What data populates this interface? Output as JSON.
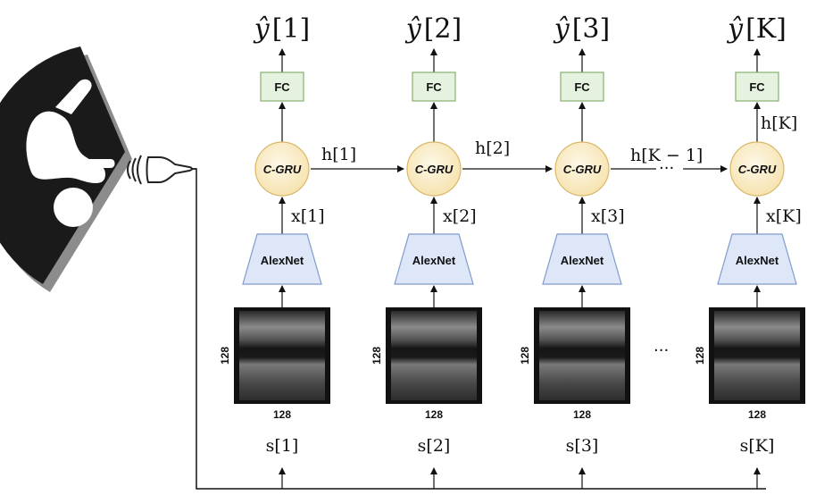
{
  "outputs": [
    {
      "hat": "ŷ",
      "index": "[1]"
    },
    {
      "hat": "ŷ",
      "index": "[2]"
    },
    {
      "hat": "ŷ",
      "index": "[3]"
    },
    {
      "hat": "ŷ",
      "index": "[K]"
    }
  ],
  "fc_label": "FC",
  "gru_label": "C-GRU",
  "alexnet_label": "AlexNet",
  "hidden_labels": [
    "h[1]",
    "h[2]",
    "h[K − 1]",
    "h[K]"
  ],
  "input_labels": [
    "x[1]",
    "x[2]",
    "x[3]",
    "x[K]"
  ],
  "signal_labels": [
    "s[1]",
    "s[2]",
    "s[3]",
    "s[K]"
  ],
  "image_size": "128",
  "ellipsis": "···",
  "ellipsis_images": "···",
  "colors": {
    "fc_fill": "#e6f2e0",
    "fc_stroke": "#86b06f",
    "gru_fill": "#fbf0cf",
    "gru_stroke": "#d9b86a",
    "alex_fill": "#dde7f7",
    "alex_stroke": "#7f9ccc",
    "scan_fill": "#111111"
  },
  "icons": [
    "fetus-scan-icon",
    "ultrasound-probe-icon"
  ]
}
